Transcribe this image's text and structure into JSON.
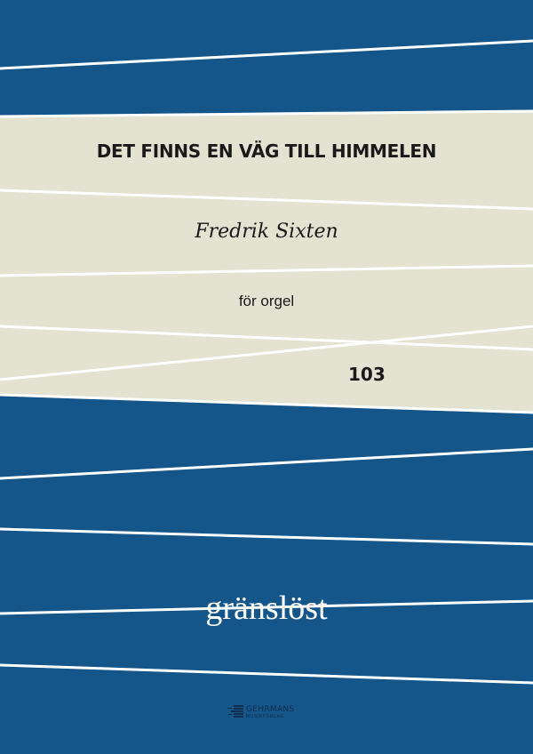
{
  "cover": {
    "title": "DET FINNS EN VÄG TILL HIMMELEN",
    "composer": "Fredrik Sixten",
    "instrumentation": "för orgel",
    "number": "103",
    "series": "gränslöst"
  },
  "publisher": {
    "name": "GEHRMANS",
    "subtitle": "MUSIKFÖRLAG",
    "icon": "organ-pipes-logo-icon"
  },
  "colors": {
    "background_blue": "#14558a",
    "band_beige": "#e4e3d2",
    "lines": "#ffffff"
  }
}
